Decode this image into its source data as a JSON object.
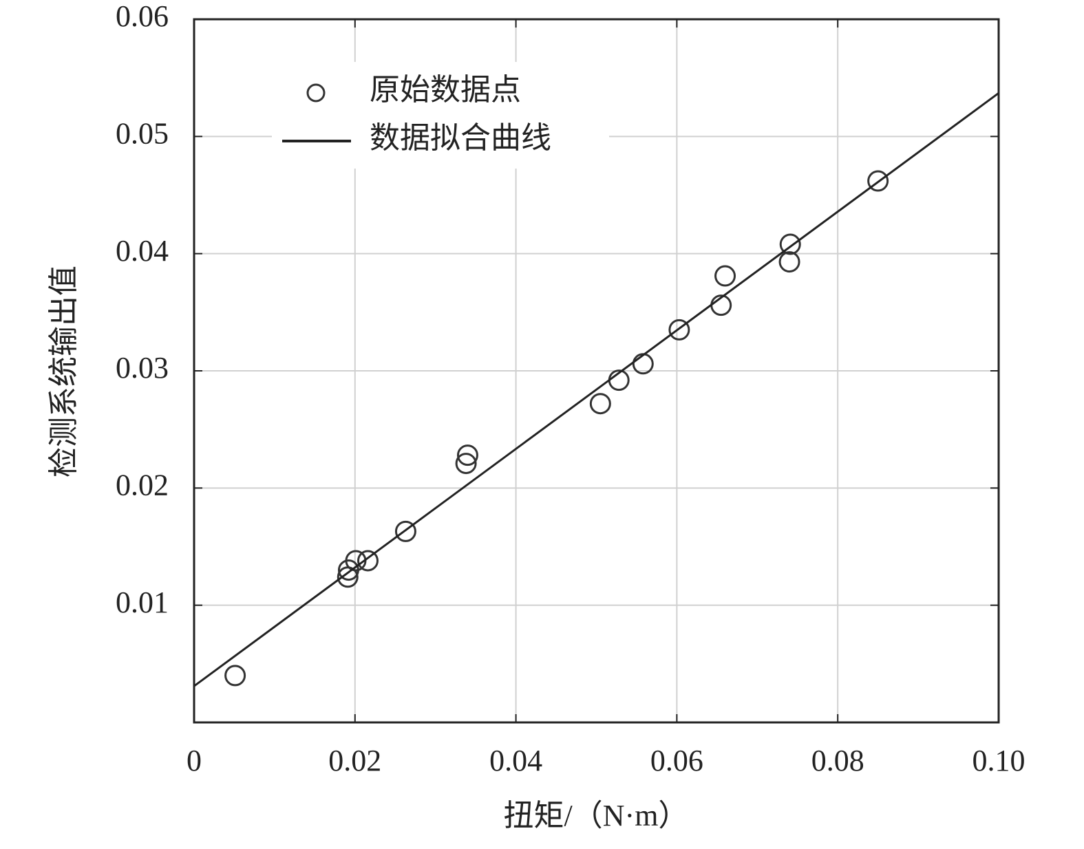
{
  "chart_data": {
    "type": "scatter",
    "xlabel": "扭矩/（N·m）",
    "ylabel": "检测系统输出值",
    "xlim": [
      0,
      0.1
    ],
    "ylim": [
      0,
      0.06
    ],
    "xticks": [
      0,
      0.02,
      0.04,
      0.06,
      0.08,
      {
        "value": 0.1,
        "label": "0.10"
      }
    ],
    "yticks": [
      0.01,
      0.02,
      0.03,
      0.04,
      0.05,
      0.06
    ],
    "grid": true,
    "legend": "upper-left",
    "series": [
      {
        "name": "原始数据点",
        "type": "scatter",
        "color": "#333333",
        "x": [
          0.0051,
          0.0191,
          0.0192,
          0.0201,
          0.0216,
          0.0263,
          0.0338,
          0.034,
          0.0505,
          0.0528,
          0.0558,
          0.0603,
          0.0655,
          0.066,
          0.074,
          0.0741,
          0.085
        ],
        "values": [
          0.004,
          0.0124,
          0.013,
          0.0138,
          0.0138,
          0.0163,
          0.0221,
          0.0228,
          0.0272,
          0.0292,
          0.0306,
          0.0335,
          0.0356,
          0.0381,
          0.0393,
          0.0408,
          0.0462
        ]
      },
      {
        "name": "数据拟合曲线",
        "type": "line",
        "color": "#222222",
        "x": [
          0,
          0.1
        ],
        "values": [
          0.0031,
          0.0537
        ]
      }
    ]
  }
}
